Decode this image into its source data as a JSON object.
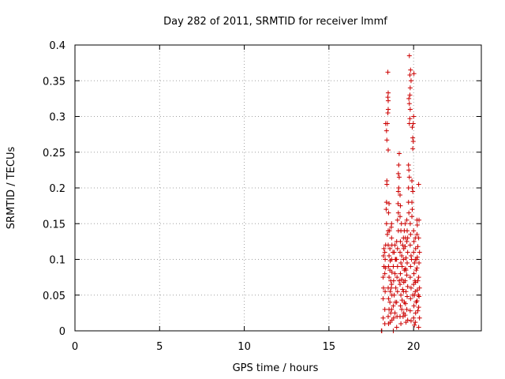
{
  "chart_data": {
    "type": "scatter",
    "title": "Day 282 of 2011, SRMTID for receiver lmmf",
    "xlabel": "GPS time / hours",
    "ylabel": "SRMTID / TECUs",
    "xlim": [
      0,
      24
    ],
    "ylim": [
      0,
      0.4
    ],
    "grid": true,
    "marker": "plus",
    "series_color": "#cc0000",
    "xticks": [
      {
        "value": 0,
        "label": "0"
      },
      {
        "value": 5,
        "label": "5"
      },
      {
        "value": 10,
        "label": "10"
      },
      {
        "value": 15,
        "label": "15"
      },
      {
        "value": 20,
        "label": "20"
      }
    ],
    "yticks": [
      {
        "value": 0,
        "label": "0"
      },
      {
        "value": 0.05,
        "label": "0.05"
      },
      {
        "value": 0.1,
        "label": "0.1"
      },
      {
        "value": 0.15,
        "label": "0.15"
      },
      {
        "value": 0.2,
        "label": "0.2"
      },
      {
        "value": 0.25,
        "label": "0.25"
      },
      {
        "value": 0.3,
        "label": "0.3"
      },
      {
        "value": 0.35,
        "label": "0.35"
      },
      {
        "value": 0.4,
        "label": "0.4"
      }
    ],
    "series": [
      {
        "name": "SRMTID",
        "points": [
          [
            18.1,
            0.0
          ],
          [
            18.12,
            0.0
          ],
          [
            18.2,
            0.018
          ],
          [
            18.2,
            0.045
          ],
          [
            18.22,
            0.06
          ],
          [
            18.2,
            0.075
          ],
          [
            18.25,
            0.09
          ],
          [
            18.22,
            0.105
          ],
          [
            18.25,
            0.115
          ],
          [
            18.3,
            0.01
          ],
          [
            18.3,
            0.03
          ],
          [
            18.32,
            0.055
          ],
          [
            18.3,
            0.08
          ],
          [
            18.32,
            0.1
          ],
          [
            18.3,
            0.11
          ],
          [
            18.35,
            0.12
          ],
          [
            18.33,
            0.088
          ],
          [
            18.4,
            0.15
          ],
          [
            18.38,
            0.17
          ],
          [
            18.4,
            0.18
          ],
          [
            18.42,
            0.205
          ],
          [
            18.42,
            0.21
          ],
          [
            18.35,
            0.29
          ],
          [
            18.45,
            0.29
          ],
          [
            18.4,
            0.28
          ],
          [
            18.42,
            0.267
          ],
          [
            18.5,
            0.253
          ],
          [
            18.48,
            0.305
          ],
          [
            18.5,
            0.31
          ],
          [
            18.5,
            0.322
          ],
          [
            18.48,
            0.327
          ],
          [
            18.5,
            0.333
          ],
          [
            18.48,
            0.362
          ],
          [
            18.45,
            0.135
          ],
          [
            18.5,
            0.14
          ],
          [
            18.52,
            0.165
          ],
          [
            18.55,
            0.178
          ],
          [
            18.5,
            0.12
          ],
          [
            18.55,
            0.105
          ],
          [
            18.52,
            0.09
          ],
          [
            18.55,
            0.075
          ],
          [
            18.5,
            0.06
          ],
          [
            18.52,
            0.045
          ],
          [
            18.55,
            0.03
          ],
          [
            18.5,
            0.02
          ],
          [
            18.52,
            0.01
          ],
          [
            18.6,
            0.115
          ],
          [
            18.62,
            0.098
          ],
          [
            18.6,
            0.085
          ],
          [
            18.65,
            0.07
          ],
          [
            18.62,
            0.055
          ],
          [
            18.6,
            0.04
          ],
          [
            18.65,
            0.025
          ],
          [
            18.62,
            0.012
          ],
          [
            18.7,
            0.15
          ],
          [
            18.68,
            0.145
          ],
          [
            18.7,
            0.13
          ],
          [
            18.72,
            0.12
          ],
          [
            18.7,
            0.1
          ],
          [
            18.72,
            0.082
          ],
          [
            18.7,
            0.065
          ],
          [
            18.72,
            0.05
          ],
          [
            18.7,
            0.03
          ],
          [
            18.72,
            0.015
          ],
          [
            18.8,
            0.0
          ],
          [
            18.82,
            0.018
          ],
          [
            18.8,
            0.035
          ],
          [
            18.85,
            0.05
          ],
          [
            18.82,
            0.07
          ],
          [
            18.8,
            0.09
          ],
          [
            18.85,
            0.11
          ],
          [
            18.9,
            0.12
          ],
          [
            18.92,
            0.1
          ],
          [
            18.9,
            0.08
          ],
          [
            18.95,
            0.06
          ],
          [
            18.92,
            0.04
          ],
          [
            18.9,
            0.025
          ],
          [
            19.0,
            0.005
          ],
          [
            19.02,
            0.02
          ],
          [
            19.0,
            0.04
          ],
          [
            19.05,
            0.055
          ],
          [
            19.02,
            0.075
          ],
          [
            19.0,
            0.1
          ],
          [
            19.05,
            0.115
          ],
          [
            19.1,
            0.14
          ],
          [
            19.05,
            0.155
          ],
          [
            19.1,
            0.165
          ],
          [
            19.08,
            0.178
          ],
          [
            19.1,
            0.195
          ],
          [
            19.12,
            0.2
          ],
          [
            19.15,
            0.215
          ],
          [
            19.1,
            0.22
          ],
          [
            19.12,
            0.232
          ],
          [
            19.15,
            0.248
          ],
          [
            19.2,
            0.19
          ],
          [
            19.22,
            0.175
          ],
          [
            19.2,
            0.16
          ],
          [
            19.25,
            0.14
          ],
          [
            19.22,
            0.125
          ],
          [
            19.2,
            0.11
          ],
          [
            19.25,
            0.095
          ],
          [
            19.22,
            0.08
          ],
          [
            19.2,
            0.065
          ],
          [
            19.25,
            0.05
          ],
          [
            19.22,
            0.035
          ],
          [
            19.2,
            0.02
          ],
          [
            19.25,
            0.01
          ],
          [
            19.3,
            0.105
          ],
          [
            19.32,
            0.09
          ],
          [
            19.3,
            0.072
          ],
          [
            19.35,
            0.058
          ],
          [
            19.32,
            0.043
          ],
          [
            19.3,
            0.03
          ],
          [
            19.4,
            0.13
          ],
          [
            19.42,
            0.115
          ],
          [
            19.4,
            0.1
          ],
          [
            19.45,
            0.085
          ],
          [
            19.42,
            0.068
          ],
          [
            19.4,
            0.055
          ],
          [
            19.45,
            0.04
          ],
          [
            19.42,
            0.025
          ],
          [
            19.5,
            0.15
          ],
          [
            19.52,
            0.13
          ],
          [
            19.5,
            0.118
          ],
          [
            19.55,
            0.102
          ],
          [
            19.52,
            0.087
          ],
          [
            19.5,
            0.07
          ],
          [
            19.55,
            0.055
          ],
          [
            19.52,
            0.038
          ],
          [
            19.5,
            0.022
          ],
          [
            19.55,
            0.012
          ],
          [
            19.6,
            0.155
          ],
          [
            19.62,
            0.14
          ],
          [
            19.6,
            0.125
          ],
          [
            19.65,
            0.11
          ],
          [
            19.62,
            0.095
          ],
          [
            19.6,
            0.078
          ],
          [
            19.65,
            0.062
          ],
          [
            19.62,
            0.048
          ],
          [
            19.6,
            0.03
          ],
          [
            19.65,
            0.015
          ],
          [
            19.7,
            0.18
          ],
          [
            19.72,
            0.165
          ],
          [
            19.7,
            0.2
          ],
          [
            19.75,
            0.215
          ],
          [
            19.72,
            0.225
          ],
          [
            19.7,
            0.232
          ],
          [
            19.75,
            0.29
          ],
          [
            19.78,
            0.297
          ],
          [
            19.8,
            0.31
          ],
          [
            19.75,
            0.318
          ],
          [
            19.78,
            0.33
          ],
          [
            19.72,
            0.325
          ],
          [
            19.8,
            0.34
          ],
          [
            19.75,
            0.385
          ],
          [
            19.82,
            0.365
          ],
          [
            19.78,
            0.358
          ],
          [
            19.85,
            0.35
          ],
          [
            19.8,
            0.15
          ],
          [
            19.82,
            0.135
          ],
          [
            19.8,
            0.12
          ],
          [
            19.85,
            0.105
          ],
          [
            19.82,
            0.09
          ],
          [
            19.8,
            0.075
          ],
          [
            19.85,
            0.06
          ],
          [
            19.82,
            0.045
          ],
          [
            19.8,
            0.028
          ],
          [
            19.85,
            0.014
          ],
          [
            19.9,
            0.18
          ],
          [
            19.92,
            0.2
          ],
          [
            19.9,
            0.21
          ],
          [
            19.95,
            0.195
          ],
          [
            19.92,
            0.17
          ],
          [
            19.9,
            0.16
          ],
          [
            19.95,
            0.255
          ],
          [
            19.98,
            0.265
          ],
          [
            19.95,
            0.27
          ],
          [
            19.92,
            0.285
          ],
          [
            19.98,
            0.29
          ],
          [
            20.0,
            0.3
          ],
          [
            20.02,
            0.36
          ],
          [
            20.0,
            0.14
          ],
          [
            20.02,
            0.125
          ],
          [
            20.0,
            0.11
          ],
          [
            20.05,
            0.095
          ],
          [
            20.02,
            0.08
          ],
          [
            20.0,
            0.065
          ],
          [
            20.05,
            0.05
          ],
          [
            20.02,
            0.035
          ],
          [
            20.0,
            0.018
          ],
          [
            20.05,
            0.008
          ],
          [
            20.1,
            0.13
          ],
          [
            20.12,
            0.115
          ],
          [
            20.1,
            0.1
          ],
          [
            20.15,
            0.085
          ],
          [
            20.12,
            0.068
          ],
          [
            20.1,
            0.055
          ],
          [
            20.15,
            0.04
          ],
          [
            20.12,
            0.025
          ],
          [
            20.1,
            0.012
          ],
          [
            20.2,
            0.155
          ],
          [
            20.22,
            0.148
          ],
          [
            20.2,
            0.135
          ],
          [
            20.25,
            0.118
          ],
          [
            20.22,
            0.103
          ],
          [
            20.2,
            0.088
          ],
          [
            20.25,
            0.07
          ],
          [
            20.22,
            0.057
          ],
          [
            20.2,
            0.042
          ],
          [
            20.25,
            0.028
          ],
          [
            20.3,
            0.205
          ],
          [
            20.32,
            0.155
          ],
          [
            20.3,
            0.13
          ],
          [
            20.35,
            0.11
          ],
          [
            20.32,
            0.095
          ],
          [
            20.3,
            0.075
          ],
          [
            20.35,
            0.06
          ],
          [
            20.32,
            0.048
          ],
          [
            20.3,
            0.033
          ],
          [
            20.35,
            0.018
          ],
          [
            20.3,
            0.005
          ],
          [
            19.0,
            0.125
          ],
          [
            19.05,
            0.09
          ],
          [
            18.95,
            0.1
          ],
          [
            19.15,
            0.07
          ],
          [
            19.35,
            0.12
          ],
          [
            19.45,
            0.14
          ],
          [
            19.55,
            0.085
          ],
          [
            19.65,
            0.13
          ],
          [
            19.88,
            0.1
          ],
          [
            19.95,
            0.05
          ],
          [
            20.08,
            0.07
          ],
          [
            20.18,
            0.1
          ],
          [
            20.28,
            0.05
          ],
          [
            18.78,
            0.11
          ],
          [
            18.58,
            0.14
          ],
          [
            18.68,
            0.06
          ],
          [
            19.28,
            0.15
          ],
          [
            19.38,
            0.02
          ]
        ]
      }
    ]
  }
}
